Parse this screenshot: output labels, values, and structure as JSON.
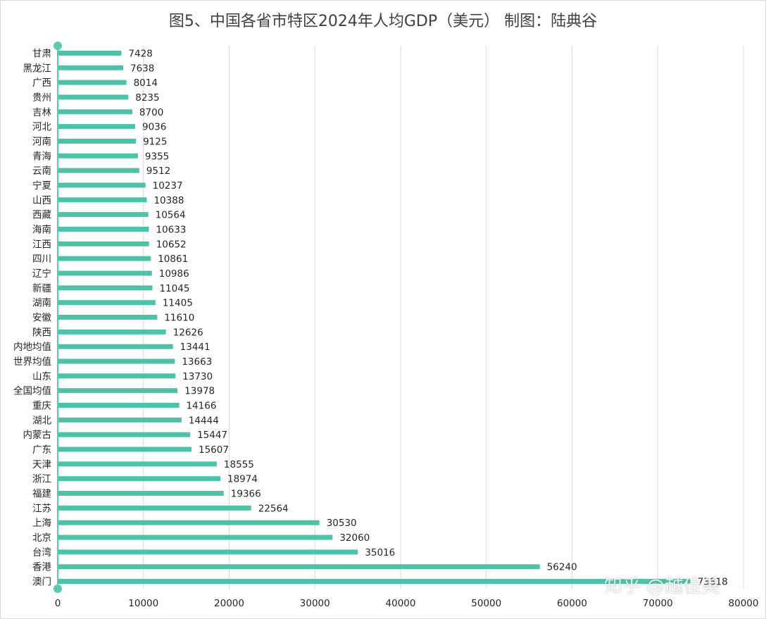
{
  "title": "图5、中国各省市特区2024年人均GDP（美元）    制图：陆典谷",
  "watermark": "知乎 @越佳美",
  "colors": {
    "bar": "#4ec2a8",
    "axis": "#5ccab2",
    "grid": "#d9d9d9"
  },
  "chart_data": {
    "type": "bar",
    "orientation": "horizontal",
    "title": "图5、中国各省市特区2024年人均GDP（美元）    制图：陆典谷",
    "xlabel": "",
    "ylabel": "",
    "xlim": [
      0,
      80000
    ],
    "xticks": [
      "0",
      "10000",
      "20000",
      "30000",
      "40000",
      "50000",
      "60000",
      "70000",
      "80000"
    ],
    "grid": "vertical",
    "categories": [
      "甘肃",
      "黑龙江",
      "广西",
      "贵州",
      "吉林",
      "河北",
      "河南",
      "青海",
      "云南",
      "宁夏",
      "山西",
      "西藏",
      "海南",
      "江西",
      "四川",
      "辽宁",
      "新疆",
      "湖南",
      "安徽",
      "陕西",
      "内地均值",
      "世界均值",
      "山东",
      "全国均值",
      "重庆",
      "湖北",
      "内蒙古",
      "广东",
      "天津",
      "浙江",
      "福建",
      "江苏",
      "上海",
      "北京",
      "台湾",
      "香港",
      "澳门"
    ],
    "values": [
      7428,
      7638,
      8014,
      8235,
      8700,
      9036,
      9125,
      9355,
      9512,
      10237,
      10388,
      10564,
      10633,
      10652,
      10861,
      10986,
      11045,
      11405,
      11610,
      12626,
      13441,
      13663,
      13730,
      13978,
      14166,
      14444,
      15447,
      15607,
      18555,
      18974,
      19366,
      22564,
      30530,
      32060,
      35016,
      56240,
      73818
    ],
    "value_labels": [
      "7428",
      "7638",
      "8014",
      "8235",
      "8700",
      "9036",
      "9125",
      "9355",
      "9512",
      "10237",
      "10388",
      "10564",
      "10633",
      "10652",
      "10861",
      "10986",
      "11045",
      "11405",
      "11610",
      "12626",
      "13441",
      "13663",
      "13730",
      "13978",
      "14166",
      "14444",
      "15447",
      "15607",
      "18555",
      "18974",
      "19366",
      "22564",
      "30530",
      "32060",
      "35016",
      "56240",
      "73818"
    ]
  }
}
